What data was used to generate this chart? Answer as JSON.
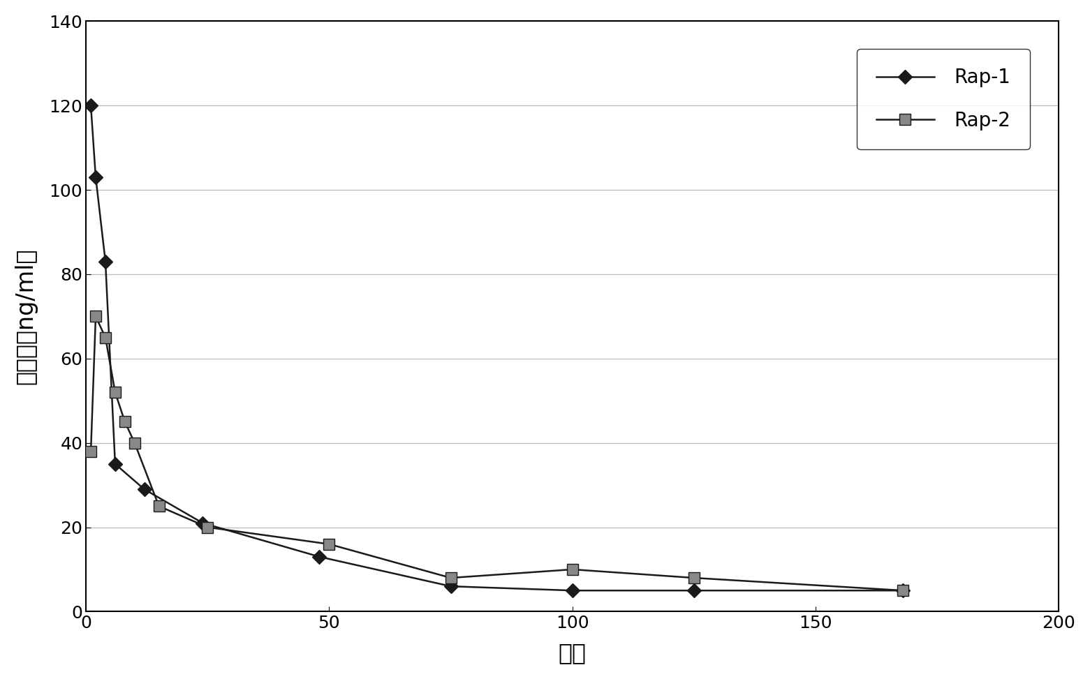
{
  "rap1_x": [
    1,
    2,
    4,
    6,
    12,
    24,
    48,
    75,
    100,
    125,
    168
  ],
  "rap1_y": [
    120,
    103,
    83,
    35,
    29,
    21,
    13,
    6,
    5,
    5,
    5
  ],
  "rap2_x": [
    1,
    2,
    4,
    6,
    8,
    10,
    15,
    25,
    50,
    75,
    100,
    125,
    168
  ],
  "rap2_y": [
    38,
    70,
    65,
    52,
    45,
    40,
    25,
    20,
    16,
    8,
    10,
    8,
    5
  ],
  "rap1_label": "Rap-1",
  "rap2_label": "Rap-2",
  "xlabel": "小时",
  "ylabel": "浓度．（ng/ml）",
  "xlim": [
    0,
    200
  ],
  "ylim": [
    0,
    140
  ],
  "xticks": [
    0,
    50,
    100,
    150,
    200
  ],
  "yticks": [
    0,
    20,
    40,
    60,
    80,
    100,
    120,
    140
  ],
  "background_color": "#ffffff",
  "line_color": "#1a1a1a",
  "rap1_marker": "D",
  "rap2_marker": "s",
  "rap2_color": "#888888"
}
